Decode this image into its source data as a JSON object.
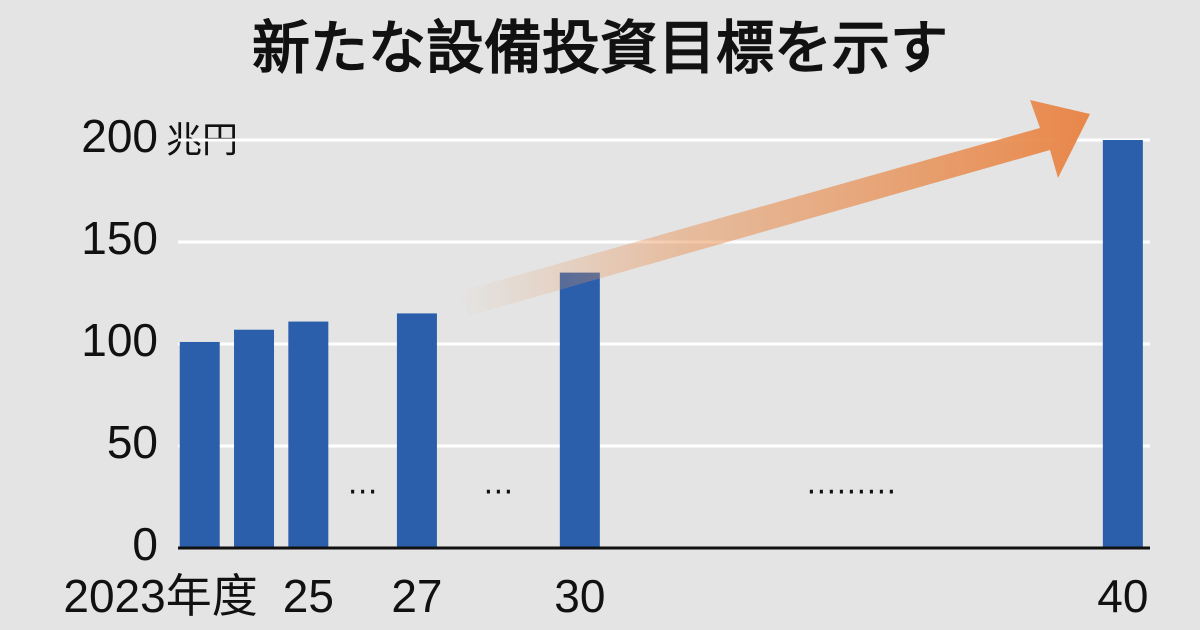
{
  "chart_data": {
    "type": "bar",
    "title": "新たな設備投資目標を示す",
    "y_label": "兆円",
    "x": [
      2023,
      2024,
      2025,
      2027,
      2030,
      2040
    ],
    "values": [
      101,
      107,
      111,
      115,
      135,
      200
    ],
    "color": "#2b5fab",
    "xlim": [
      2022.6,
      2040.5
    ],
    "xticks": [
      {
        "value": 2023,
        "label": "2023年度"
      },
      {
        "value": 2025,
        "label": "25"
      },
      {
        "value": 2027,
        "label": "27"
      },
      {
        "value": 2030,
        "label": "30"
      },
      {
        "value": 2040,
        "label": "40"
      }
    ],
    "ylim": [
      0,
      200
    ],
    "yticks": [
      0,
      50,
      100,
      150,
      200
    ],
    "grid": true,
    "gap_markers": [
      "…",
      "…",
      "………"
    ]
  }
}
